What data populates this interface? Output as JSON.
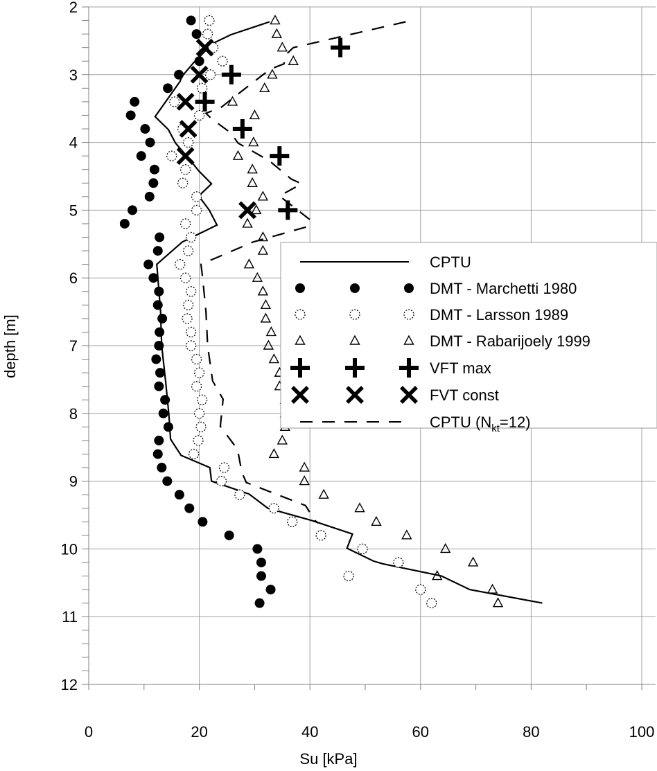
{
  "chart_data": {
    "type": "scatter",
    "xlabel": "Su [kPa]",
    "ylabel": "depth [m]",
    "xlim": [
      0,
      100
    ],
    "ylim": [
      2,
      12
    ],
    "y_inverted": true,
    "grid": true,
    "legend_placement": "center-right",
    "x_ticks": [
      "0",
      "20",
      "40",
      "60",
      "80",
      "100"
    ],
    "y_ticks": [
      "2",
      "3",
      "4",
      "5",
      "6",
      "7",
      "8",
      "9",
      "10",
      "11",
      "12"
    ],
    "series": [
      {
        "name": "CPTU",
        "kind": "line-solid",
        "points": [
          [
            32.7,
            2.22
          ],
          [
            25.7,
            2.41
          ],
          [
            22.4,
            2.54
          ],
          [
            19,
            2.82
          ],
          [
            16.9,
            3.02
          ],
          [
            16.5,
            3.1
          ],
          [
            12,
            3.62
          ],
          [
            14.4,
            3.81
          ],
          [
            15.7,
            4.01
          ],
          [
            17.8,
            4.21
          ],
          [
            19.9,
            4.42
          ],
          [
            22.2,
            4.61
          ],
          [
            19.9,
            4.79
          ],
          [
            21.8,
            5.0
          ],
          [
            23.2,
            5.22
          ],
          [
            16.9,
            5.47
          ],
          [
            12.3,
            5.8
          ],
          [
            12.5,
            6.0
          ],
          [
            13,
            6.5
          ],
          [
            13.2,
            7.0
          ],
          [
            13.9,
            7.52
          ],
          [
            14.5,
            8.02
          ],
          [
            14.8,
            8.38
          ],
          [
            16.7,
            8.62
          ],
          [
            21.9,
            8.8
          ],
          [
            22.2,
            9.0
          ],
          [
            29,
            9.19
          ],
          [
            32.4,
            9.4
          ],
          [
            40.3,
            9.58
          ],
          [
            47.7,
            9.78
          ],
          [
            46.7,
            9.99
          ],
          [
            51.5,
            10.18
          ],
          [
            53.2,
            10.22
          ],
          [
            63.8,
            10.4
          ],
          [
            68.9,
            10.6
          ],
          [
            82,
            10.8
          ]
        ]
      },
      {
        "name": "DMT - Marchetti 1980",
        "kind": "filled-circle",
        "points": [
          [
            18.5,
            2.2
          ],
          [
            19.5,
            2.4
          ],
          [
            20,
            2.8
          ],
          [
            16.3,
            3.0
          ],
          [
            14.3,
            3.2
          ],
          [
            8.3,
            3.4
          ],
          [
            7.6,
            3.6
          ],
          [
            10.2,
            3.8
          ],
          [
            11.1,
            4.0
          ],
          [
            9.5,
            4.2
          ],
          [
            11.9,
            4.4
          ],
          [
            11.7,
            4.6
          ],
          [
            11,
            4.8
          ],
          [
            7.9,
            5.0
          ],
          [
            6.5,
            5.2
          ],
          [
            12.8,
            5.4
          ],
          [
            12.5,
            5.6
          ],
          [
            10.8,
            5.8
          ],
          [
            11.7,
            6.0
          ],
          [
            12.7,
            6.2
          ],
          [
            12.5,
            6.4
          ],
          [
            13.3,
            6.6
          ],
          [
            12.8,
            6.8
          ],
          [
            12.7,
            7.0
          ],
          [
            12.2,
            7.2
          ],
          [
            12.9,
            7.4
          ],
          [
            12.7,
            7.6
          ],
          [
            13.8,
            7.8
          ],
          [
            13.5,
            8.0
          ],
          [
            14.4,
            8.2
          ],
          [
            12.7,
            8.4
          ],
          [
            12.5,
            8.6
          ],
          [
            13.2,
            8.8
          ],
          [
            14.2,
            9.0
          ],
          [
            16.4,
            9.2
          ],
          [
            18.2,
            9.4
          ],
          [
            20.6,
            9.6
          ],
          [
            25.4,
            9.8
          ],
          [
            30.5,
            10.0
          ],
          [
            31.2,
            10.2
          ],
          [
            31.2,
            10.4
          ],
          [
            32.9,
            10.6
          ],
          [
            30.9,
            10.8
          ]
        ]
      },
      {
        "name": "DMT - Larsson 1989",
        "kind": "open-circle",
        "points": [
          [
            21.8,
            2.2
          ],
          [
            21.5,
            2.4
          ],
          [
            22.5,
            2.6
          ],
          [
            24.2,
            2.8
          ],
          [
            22,
            3.0
          ],
          [
            20.5,
            3.2
          ],
          [
            15.5,
            3.4
          ],
          [
            20,
            3.6
          ],
          [
            17,
            3.8
          ],
          [
            18,
            4.0
          ],
          [
            15,
            4.2
          ],
          [
            17.5,
            4.4
          ],
          [
            17,
            4.6
          ],
          [
            19.5,
            4.8
          ],
          [
            19.5,
            5.0
          ],
          [
            17.5,
            5.2
          ],
          [
            18.5,
            5.4
          ],
          [
            18,
            5.6
          ],
          [
            16.5,
            5.8
          ],
          [
            17.5,
            6.0
          ],
          [
            18.5,
            6.2
          ],
          [
            18,
            6.4
          ],
          [
            17.8,
            6.6
          ],
          [
            18.5,
            6.8
          ],
          [
            18.5,
            7.0
          ],
          [
            19.5,
            7.2
          ],
          [
            20,
            7.4
          ],
          [
            19.5,
            7.6
          ],
          [
            20.5,
            7.8
          ],
          [
            20,
            8.0
          ],
          [
            20.3,
            8.2
          ],
          [
            19.8,
            8.4
          ],
          [
            19,
            8.6
          ],
          [
            24.5,
            8.8
          ],
          [
            24,
            9.0
          ],
          [
            27.3,
            9.2
          ],
          [
            33.5,
            9.4
          ],
          [
            36.8,
            9.6
          ],
          [
            42,
            9.8
          ],
          [
            49.5,
            10.0
          ],
          [
            56,
            10.2
          ],
          [
            47,
            10.4
          ],
          [
            60,
            10.6
          ],
          [
            62,
            10.8
          ]
        ]
      },
      {
        "name": "DMT - Rabarijoely 1999",
        "kind": "open-triangle",
        "points": [
          [
            33.7,
            2.2
          ],
          [
            34,
            2.4
          ],
          [
            35,
            2.6
          ],
          [
            37,
            2.8
          ],
          [
            33.2,
            3.0
          ],
          [
            31.8,
            3.2
          ],
          [
            26,
            3.4
          ],
          [
            30,
            3.6
          ],
          [
            29.8,
            4.0
          ],
          [
            27,
            4.2
          ],
          [
            29.6,
            4.4
          ],
          [
            29.6,
            4.6
          ],
          [
            31.5,
            4.8
          ],
          [
            30.3,
            5.0
          ],
          [
            28.7,
            5.2
          ],
          [
            31.5,
            5.4
          ],
          [
            31.5,
            5.6
          ],
          [
            29,
            5.8
          ],
          [
            30.5,
            6.0
          ],
          [
            31.5,
            6.2
          ],
          [
            32,
            6.4
          ],
          [
            32,
            6.6
          ],
          [
            33,
            6.8
          ],
          [
            32.5,
            7.0
          ],
          [
            33.5,
            7.2
          ],
          [
            34.5,
            7.4
          ],
          [
            34.5,
            7.6
          ],
          [
            35.5,
            7.8
          ],
          [
            35.5,
            8.0
          ],
          [
            35.5,
            8.2
          ],
          [
            35,
            8.4
          ],
          [
            33.5,
            8.6
          ],
          [
            39,
            8.8
          ],
          [
            39,
            9.0
          ],
          [
            42.5,
            9.2
          ],
          [
            49,
            9.4
          ],
          [
            52,
            9.6
          ],
          [
            57.5,
            9.8
          ],
          [
            64.5,
            10.0
          ],
          [
            69.5,
            10.2
          ],
          [
            63,
            10.4
          ],
          [
            73,
            10.6
          ],
          [
            74,
            10.8
          ]
        ]
      },
      {
        "name": "VFT max",
        "kind": "plus",
        "points": [
          [
            45.5,
            2.6
          ],
          [
            25.8,
            3.0
          ],
          [
            21,
            3.4
          ],
          [
            27.8,
            3.8
          ],
          [
            34.5,
            4.2
          ],
          [
            36,
            5.0
          ]
        ]
      },
      {
        "name": "FVT const",
        "kind": "cross",
        "points": [
          [
            21,
            2.6
          ],
          [
            20,
            3.0
          ],
          [
            17.5,
            3.4
          ],
          [
            18,
            3.8
          ],
          [
            17.5,
            4.2
          ],
          [
            28.7,
            5.0
          ]
        ]
      },
      {
        "name": "CPTU (Nkt=12)",
        "kind": "line-dashed",
        "points": [
          [
            57.3,
            2.22
          ],
          [
            37,
            2.6
          ],
          [
            35.7,
            2.7
          ],
          [
            35.3,
            2.84
          ],
          [
            32.8,
            2.92
          ],
          [
            27.4,
            3.26
          ],
          [
            24,
            3.48
          ],
          [
            21.2,
            3.57
          ],
          [
            22.2,
            3.65
          ],
          [
            25.7,
            3.86
          ],
          [
            27,
            4.01
          ],
          [
            30.7,
            4.18
          ],
          [
            32.8,
            4.28
          ],
          [
            36.6,
            4.54
          ],
          [
            38.5,
            4.61
          ],
          [
            34.5,
            4.79
          ],
          [
            37.8,
            5.0
          ],
          [
            40,
            5.14
          ],
          [
            39.7,
            5.24
          ],
          [
            29.7,
            5.47
          ],
          [
            20.3,
            5.8
          ],
          [
            20.6,
            6.0
          ],
          [
            21.2,
            6.5
          ],
          [
            21.5,
            7.0
          ],
          [
            22.4,
            7.52
          ],
          [
            24.3,
            7.79
          ],
          [
            23.8,
            8.19
          ],
          [
            26.9,
            8.53
          ],
          [
            27.7,
            8.87
          ],
          [
            28.5,
            9.02
          ],
          [
            39.2,
            9.36
          ],
          [
            40.9,
            9.58
          ],
          [
            41.5,
            9.62
          ]
        ]
      }
    ],
    "legend": {
      "cptu": "CPTU",
      "marchetti": "DMT - Marchetti 1980",
      "larsson": "DMT - Larsson 1989",
      "rabarijoely": "DMT - Rabarijoely 1999",
      "vft": "VFT max",
      "fvt": "FVT const",
      "cptu_nkt_prefix": "CPTU (N",
      "cptu_nkt_sub": "kt",
      "cptu_nkt_suffix": "=12)"
    }
  }
}
